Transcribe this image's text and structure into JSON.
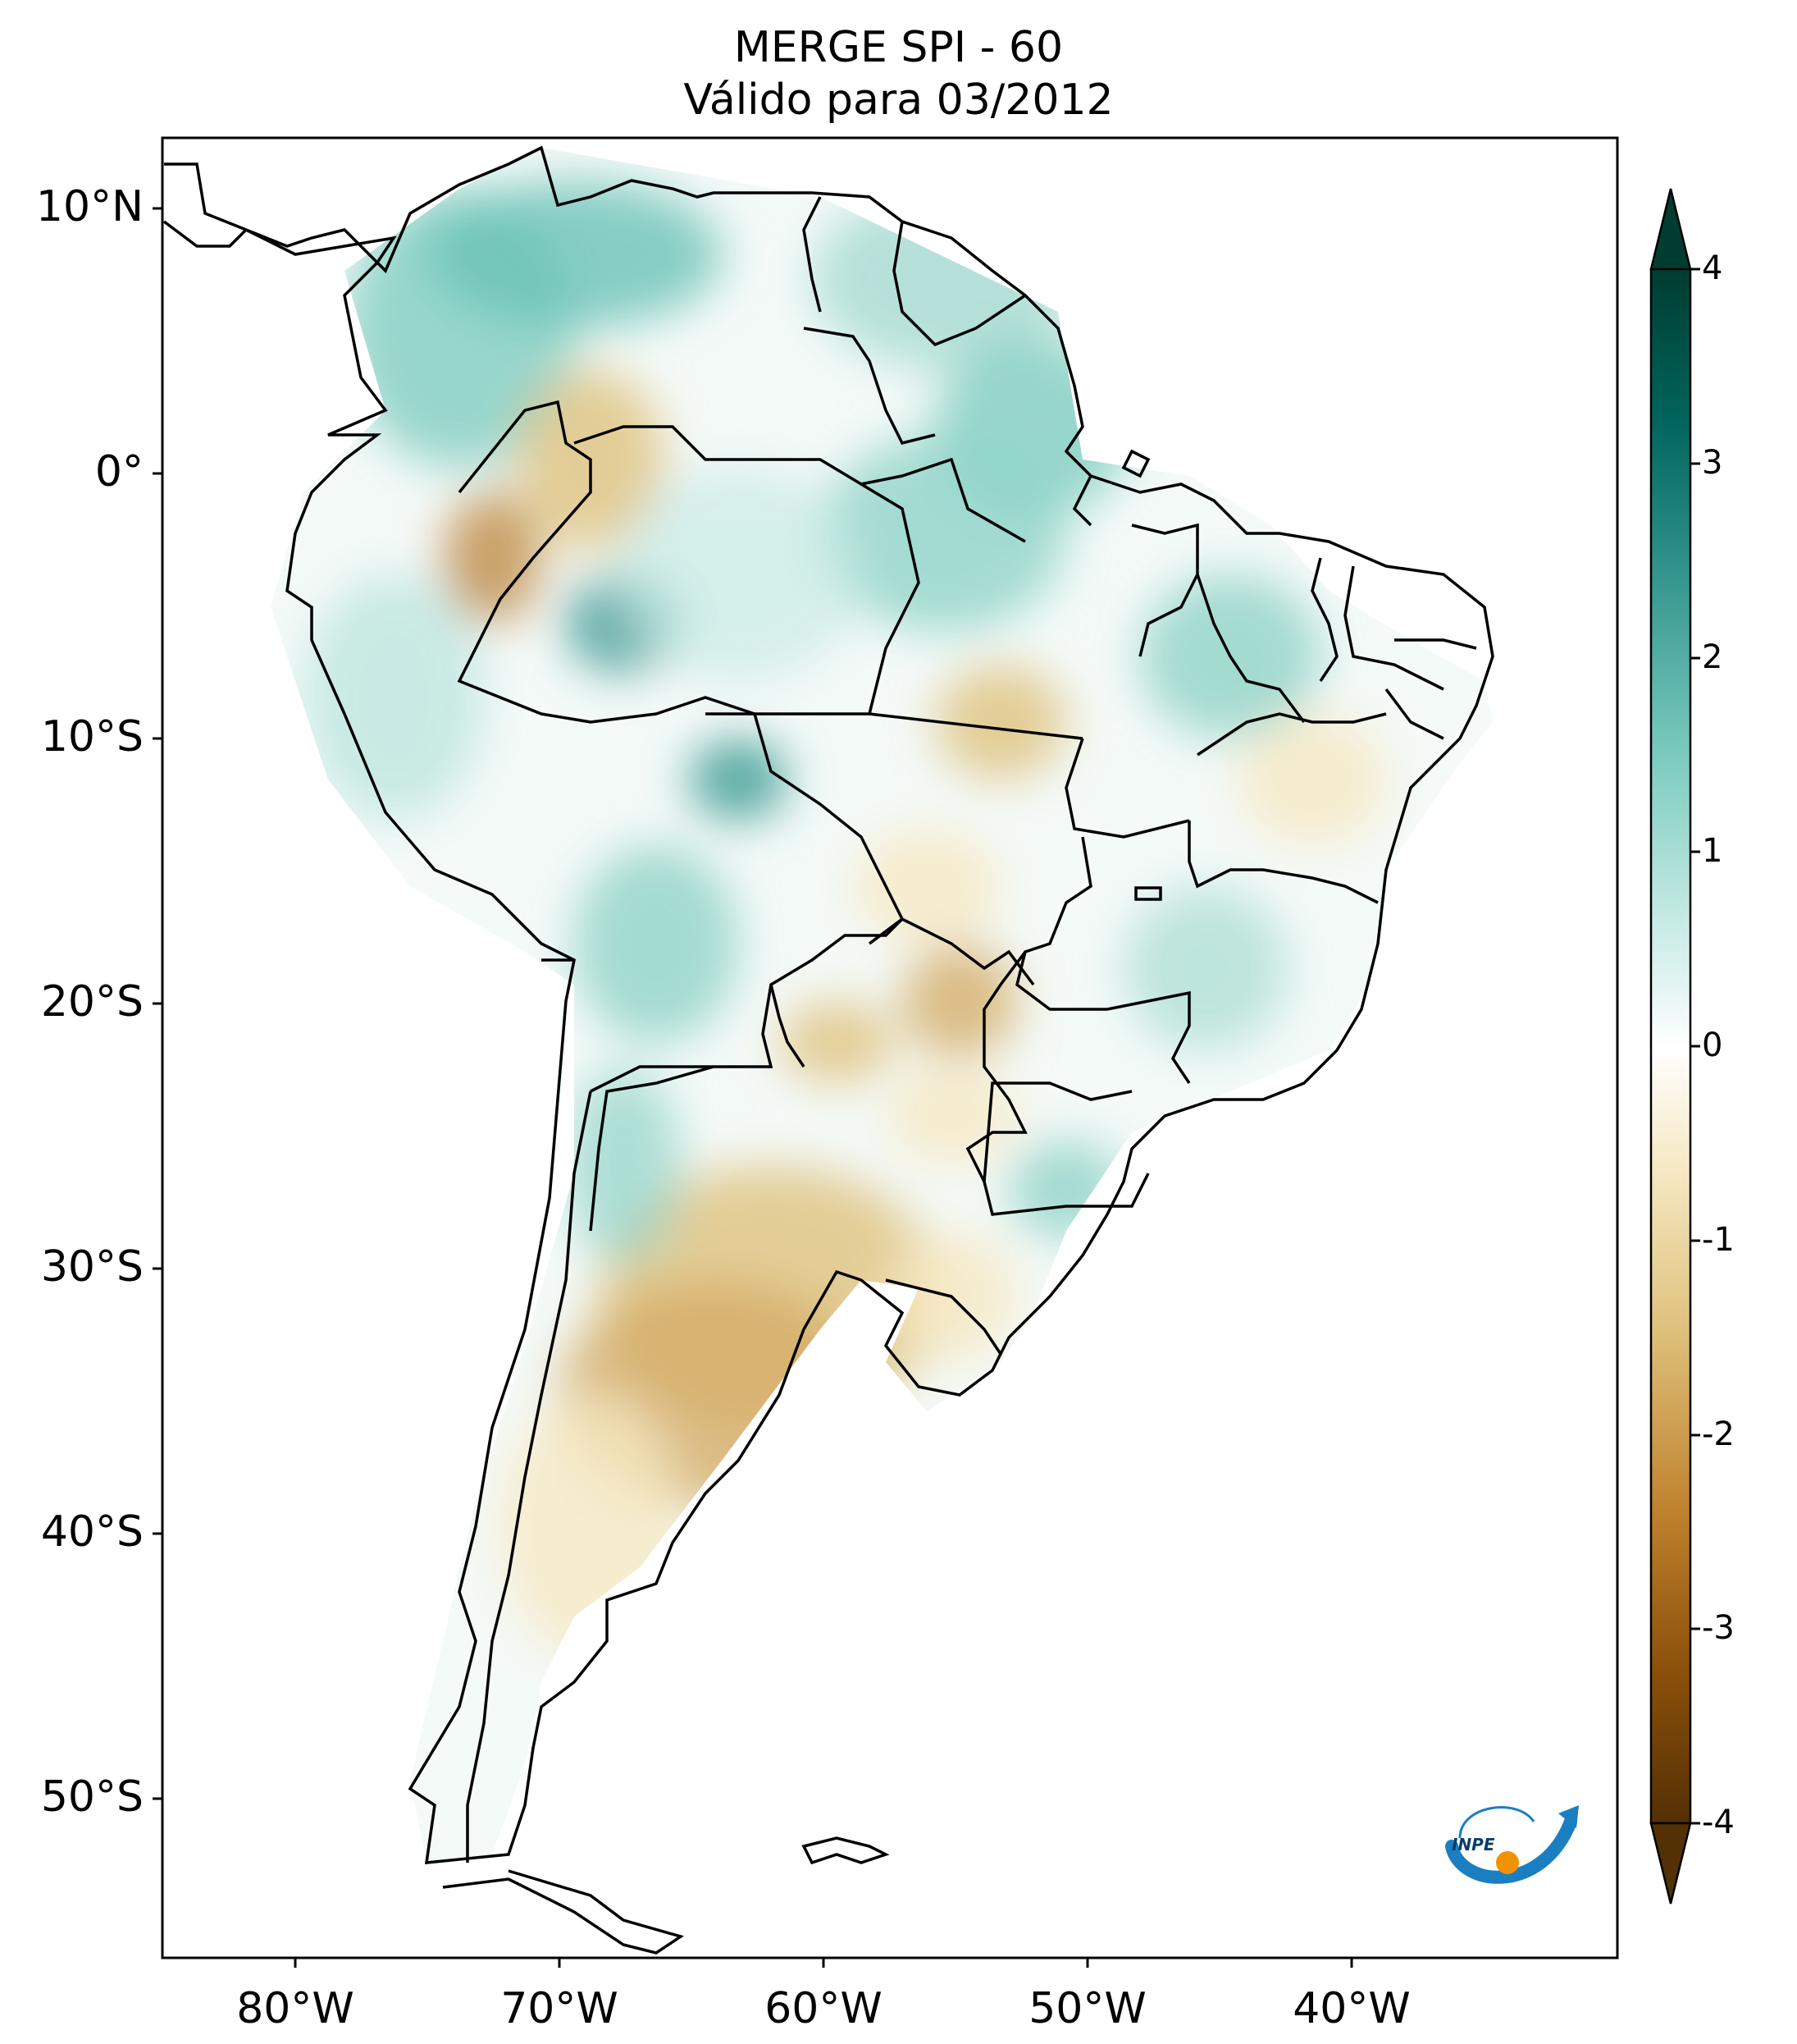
{
  "figure": {
    "title_line1": "MERGE   SPI - 60",
    "title_line2": "Válido para 03/2012",
    "lat_ticks": [
      "10°N",
      "0°",
      "10°S",
      "20°S",
      "30°S",
      "40°S",
      "50°S"
    ],
    "lon_ticks": [
      "80°W",
      "70°W",
      "60°W",
      "50°W",
      "40°W"
    ],
    "extent": {
      "lon_min": -85,
      "lon_max": -30,
      "lat_min": -56,
      "lat_max": 12.5
    },
    "colorbar": {
      "ticks": [
        "4",
        "3",
        "2",
        "1",
        "0",
        "-1",
        "-2",
        "-3",
        "-4"
      ],
      "min": -4,
      "max": 4,
      "extend": "both",
      "colormap": "BrBG",
      "colors": [
        "#543005",
        "#8c510a",
        "#bf812d",
        "#dfc27d",
        "#f6e8c3",
        "#ffffff",
        "#c7eae5",
        "#80cdc1",
        "#35978f",
        "#01665e",
        "#003c30"
      ]
    },
    "logo_text": "INPE",
    "logo_colors": {
      "blue": "#1a7fc1",
      "orange": "#f39200"
    }
  }
}
